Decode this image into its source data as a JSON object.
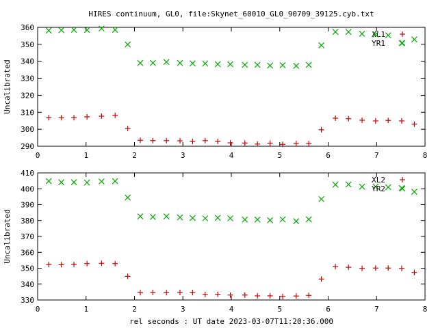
{
  "title": "HIRES continuum, GL0, file:Skynet_60010_GL0_90709_39125.cyb.txt",
  "xlabel": "rel seconds : UT date 2023-03-07T11:20:36.000",
  "colors": {
    "red": "#cc0000",
    "green": "#00aa00",
    "axis": "#000000",
    "background": "#ffffff"
  },
  "chart_data": [
    {
      "type": "scatter",
      "ylabel": "Uncalibrated",
      "xlim": [
        0,
        8
      ],
      "ylim": [
        290,
        360
      ],
      "xticks": [
        0,
        1,
        2,
        3,
        4,
        5,
        6,
        7,
        8
      ],
      "yticks": [
        290,
        300,
        310,
        320,
        330,
        340,
        350,
        360
      ],
      "legend_position": "top-right",
      "grid": false,
      "series": [
        {
          "name": "XL1",
          "marker": "plus",
          "color": "#cc0000",
          "x": [
            0.23,
            0.49,
            0.75,
            1.02,
            1.32,
            1.6,
            1.86,
            2.12,
            2.38,
            2.66,
            2.94,
            3.2,
            3.46,
            3.72,
            3.98,
            4.28,
            4.54,
            4.8,
            5.06,
            5.34,
            5.6,
            5.86,
            6.15,
            6.42,
            6.7,
            6.98,
            7.24,
            7.52,
            7.78
          ],
          "y": [
            306.8,
            306.8,
            306.8,
            307.3,
            307.7,
            308.2,
            300.4,
            293.5,
            293.3,
            293.3,
            293.2,
            292.8,
            293.3,
            292.8,
            292.0,
            291.9,
            291.3,
            291.8,
            291.1,
            291.6,
            291.6,
            299.7,
            306.5,
            306.2,
            305.3,
            304.9,
            305.2,
            304.9,
            303.0
          ]
        },
        {
          "name": "YR1",
          "marker": "cross",
          "color": "#00aa00",
          "x": [
            0.23,
            0.49,
            0.75,
            1.02,
            1.32,
            1.6,
            1.86,
            2.12,
            2.38,
            2.66,
            2.94,
            3.2,
            3.46,
            3.72,
            3.98,
            4.28,
            4.54,
            4.8,
            5.06,
            5.34,
            5.6,
            5.86,
            6.15,
            6.42,
            6.7,
            6.98,
            7.24,
            7.52,
            7.78
          ],
          "y": [
            358.1,
            358.3,
            358.5,
            358.4,
            359.3,
            358.5,
            349.9,
            339.0,
            339.0,
            339.6,
            339.0,
            338.8,
            338.7,
            338.3,
            338.3,
            337.9,
            337.9,
            337.5,
            337.7,
            337.3,
            337.9,
            349.4,
            357.3,
            357.3,
            356.2,
            355.8,
            355.3,
            350.7,
            352.9
          ]
        }
      ]
    },
    {
      "type": "scatter",
      "ylabel": "Uncalibrated",
      "xlim": [
        0,
        8
      ],
      "ylim": [
        330,
        410
      ],
      "xticks": [
        0,
        1,
        2,
        3,
        4,
        5,
        6,
        7,
        8
      ],
      "yticks": [
        330,
        340,
        350,
        360,
        370,
        380,
        390,
        400,
        410
      ],
      "legend_position": "top-right",
      "grid": false,
      "series": [
        {
          "name": "XL2",
          "marker": "plus",
          "color": "#cc0000",
          "x": [
            0.23,
            0.49,
            0.75,
            1.02,
            1.32,
            1.6,
            1.86,
            2.12,
            2.38,
            2.66,
            2.94,
            3.2,
            3.46,
            3.72,
            3.98,
            4.28,
            4.54,
            4.8,
            5.06,
            5.34,
            5.6,
            5.86,
            6.15,
            6.42,
            6.7,
            6.98,
            7.24,
            7.52,
            7.78
          ],
          "y": [
            352.3,
            352.2,
            352.4,
            352.9,
            353.1,
            352.9,
            344.9,
            334.6,
            334.7,
            334.6,
            334.7,
            334.6,
            333.5,
            333.6,
            333.1,
            333.1,
            332.6,
            332.6,
            332.2,
            332.5,
            332.9,
            343.2,
            351.0,
            350.6,
            349.9,
            350.1,
            350.1,
            349.9,
            347.3
          ]
        },
        {
          "name": "YR2",
          "marker": "cross",
          "color": "#00aa00",
          "x": [
            0.23,
            0.49,
            0.75,
            1.02,
            1.32,
            1.6,
            1.86,
            2.12,
            2.38,
            2.66,
            2.94,
            3.2,
            3.46,
            3.72,
            3.98,
            4.28,
            4.54,
            4.8,
            5.06,
            5.34,
            5.6,
            5.86,
            6.15,
            6.42,
            6.7,
            6.98,
            7.24,
            7.52,
            7.78
          ],
          "y": [
            404.8,
            404.1,
            404.1,
            403.9,
            404.6,
            404.8,
            394.5,
            382.6,
            382.3,
            382.6,
            382.0,
            381.6,
            381.4,
            381.7,
            381.4,
            380.6,
            380.6,
            380.2,
            380.7,
            379.6,
            380.8,
            393.5,
            402.6,
            402.7,
            401.3,
            401.3,
            401.0,
            400.4,
            398.1
          ]
        }
      ]
    }
  ]
}
